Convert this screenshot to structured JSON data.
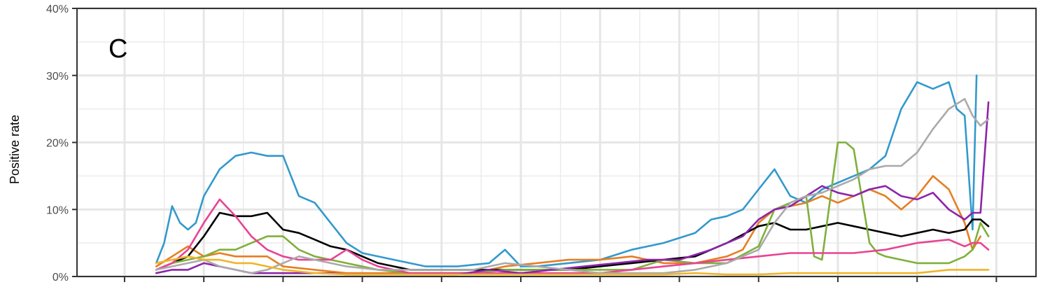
{
  "chart_data": {
    "type": "line",
    "panel_label": "C",
    "ylabel": "Positive rate",
    "xlabel": "",
    "ylim": [
      0,
      40
    ],
    "xlim": [
      -6,
      115
    ],
    "grid": true,
    "y_ticks": [
      0,
      10,
      20,
      30,
      40
    ],
    "y_tick_labels": [
      "0%",
      "10%",
      "20%",
      "30%",
      "40%"
    ],
    "x_ticks": [
      0,
      10,
      20,
      30,
      40,
      50,
      60,
      70,
      80,
      90,
      100,
      110
    ],
    "series": [
      {
        "color": "#3399cc",
        "x": [
          4,
          5,
          6,
          7,
          8,
          9,
          10,
          12,
          14,
          16,
          18,
          20,
          22,
          24,
          26,
          28,
          30,
          34,
          38,
          42,
          46,
          48,
          50,
          52,
          56,
          60,
          64,
          68,
          72,
          74,
          76,
          78,
          80,
          82,
          84,
          86,
          88,
          90,
          92,
          94,
          96,
          98,
          100,
          102,
          104,
          105,
          106,
          107,
          107.5
        ],
        "y": [
          2,
          5,
          10.5,
          8,
          7,
          8,
          12,
          16,
          18,
          18.5,
          18,
          18,
          12,
          11,
          8,
          5,
          3.5,
          2.5,
          1.5,
          1.5,
          2,
          4,
          1.5,
          1.5,
          2,
          2.5,
          4,
          5,
          6.5,
          8.5,
          9,
          10,
          13,
          16,
          12,
          11,
          13,
          14,
          15,
          16,
          18,
          25,
          29,
          28,
          29,
          25,
          24,
          7,
          30
        ]
      },
      {
        "color": "#e67e22",
        "x": [
          4,
          6,
          8,
          10,
          12,
          14,
          16,
          18,
          20,
          24,
          28,
          32,
          36,
          40,
          44,
          48,
          52,
          56,
          60,
          64,
          68,
          72,
          76,
          78,
          80,
          82,
          84,
          86,
          88,
          90,
          92,
          94,
          96,
          98,
          100,
          102,
          104,
          106,
          107,
          108
        ],
        "y": [
          1.5,
          3,
          4.5,
          3,
          3.5,
          3,
          3,
          3,
          1.5,
          1,
          0.5,
          0.5,
          0.5,
          0.5,
          0.5,
          1.5,
          2,
          2.5,
          2.5,
          3,
          2,
          2,
          3,
          4,
          8,
          10,
          10.5,
          11,
          12,
          11,
          12,
          13,
          12,
          10,
          12,
          15,
          13,
          8,
          4,
          6
        ]
      },
      {
        "color": "#000000",
        "x": [
          4,
          6,
          8,
          10,
          12,
          14,
          16,
          18,
          20,
          22,
          24,
          26,
          28,
          30,
          32,
          34,
          36,
          40,
          44,
          48,
          52,
          56,
          60,
          64,
          68,
          72,
          76,
          80,
          82,
          84,
          86,
          88,
          90,
          92,
          94,
          96,
          98,
          100,
          102,
          104,
          106,
          107,
          108,
          109
        ],
        "y": [
          1,
          2,
          3,
          6,
          9.5,
          9,
          9,
          9.5,
          7,
          6.5,
          5.5,
          4.5,
          4,
          3,
          2,
          1.5,
          1,
          1,
          1,
          1,
          1,
          1,
          1.5,
          2,
          2.5,
          3,
          5,
          7.5,
          8,
          7,
          7,
          7.5,
          8,
          7.5,
          7,
          6.5,
          6,
          6.5,
          7,
          6.5,
          7,
          8.5,
          8.5,
          7.5
        ]
      },
      {
        "color": "#7fb03b",
        "x": [
          4,
          6,
          8,
          10,
          12,
          14,
          16,
          18,
          20,
          22,
          24,
          28,
          32,
          36,
          40,
          44,
          48,
          52,
          56,
          60,
          64,
          68,
          72,
          76,
          80,
          82,
          84,
          86,
          87,
          88,
          90,
          91,
          92,
          93,
          94,
          95,
          96,
          98,
          100,
          102,
          104,
          106,
          107,
          108,
          109
        ],
        "y": [
          1,
          2,
          2.5,
          3,
          4,
          4,
          5,
          6,
          6,
          4,
          3,
          2,
          1,
          0.5,
          0.5,
          0.5,
          1,
          1,
          1,
          1,
          1,
          2.5,
          2,
          2,
          4.5,
          10,
          11,
          12,
          3,
          2.5,
          20,
          20,
          19,
          12,
          5,
          3.5,
          3,
          2.5,
          2,
          2,
          2,
          3,
          4,
          8,
          6
        ]
      },
      {
        "color": "#e84393",
        "x": [
          4,
          6,
          8,
          10,
          12,
          14,
          16,
          18,
          20,
          22,
          24,
          26,
          28,
          30,
          32,
          34,
          36,
          40,
          44,
          48,
          52,
          56,
          60,
          64,
          68,
          72,
          76,
          80,
          84,
          88,
          92,
          96,
          100,
          104,
          106,
          107,
          108,
          109
        ],
        "y": [
          1,
          2,
          4,
          8,
          11.5,
          9,
          6,
          4,
          3,
          2.5,
          2.5,
          2.5,
          4,
          2.5,
          1.5,
          1,
          0.5,
          0.5,
          0.5,
          0.5,
          0.5,
          0.5,
          0.5,
          1,
          1.5,
          2,
          2.5,
          3,
          3.5,
          3.5,
          3.5,
          4,
          5,
          5.5,
          4.5,
          5,
          5,
          4
        ]
      },
      {
        "color": "#8e24aa",
        "x": [
          4,
          6,
          8,
          10,
          12,
          14,
          16,
          18,
          20,
          22,
          24,
          26,
          28,
          30,
          34,
          38,
          42,
          46,
          50,
          54,
          58,
          62,
          66,
          70,
          74,
          78,
          80,
          82,
          84,
          86,
          88,
          90,
          92,
          94,
          96,
          98,
          100,
          102,
          104,
          106,
          107,
          108,
          109
        ],
        "y": [
          0.5,
          1,
          1,
          2,
          1.5,
          1,
          0.5,
          0.5,
          0.5,
          0.5,
          0.5,
          0.5,
          0.3,
          0.3,
          0.3,
          0.3,
          0.3,
          1,
          0.5,
          1,
          1.5,
          2,
          2.5,
          2.5,
          4,
          6,
          8.5,
          10,
          10.5,
          12,
          13.5,
          12.5,
          12,
          13,
          13.5,
          12,
          11.5,
          12.5,
          10,
          8.5,
          9.5,
          9.5,
          26
        ]
      },
      {
        "color": "#aaaaaa",
        "x": [
          4,
          6,
          8,
          10,
          12,
          14,
          16,
          18,
          20,
          22,
          24,
          28,
          32,
          36,
          40,
          44,
          48,
          52,
          56,
          60,
          64,
          68,
          72,
          76,
          80,
          82,
          84,
          86,
          88,
          90,
          92,
          94,
          96,
          98,
          100,
          102,
          104,
          106,
          107,
          108,
          109
        ],
        "y": [
          1,
          1.5,
          2,
          2.5,
          1.5,
          1,
          0.5,
          1,
          2,
          3,
          2.5,
          1.5,
          1,
          1,
          1,
          1,
          2,
          1.5,
          1,
          0.5,
          0.5,
          0.5,
          1,
          2,
          4,
          8,
          11,
          12,
          12.5,
          13.5,
          14.5,
          16,
          16.5,
          16.5,
          18.5,
          22,
          25,
          26.5,
          24,
          22.5,
          23.5
        ]
      },
      {
        "color": "#f0b428",
        "x": [
          4,
          6,
          8,
          10,
          12,
          14,
          16,
          18,
          20,
          24,
          28,
          32,
          36,
          40,
          44,
          48,
          52,
          56,
          60,
          64,
          68,
          72,
          76,
          80,
          84,
          88,
          92,
          96,
          100,
          104,
          106,
          108,
          109
        ],
        "y": [
          2,
          2.5,
          3,
          2.5,
          2.5,
          2,
          2,
          1.5,
          1,
          0.5,
          0.3,
          0.3,
          0.3,
          0.3,
          0.3,
          0.3,
          0.3,
          0.3,
          0.3,
          0.3,
          0.3,
          0.5,
          0.3,
          0.3,
          0.5,
          0.5,
          0.5,
          0.5,
          0.5,
          1,
          1,
          1,
          1
        ]
      }
    ]
  }
}
